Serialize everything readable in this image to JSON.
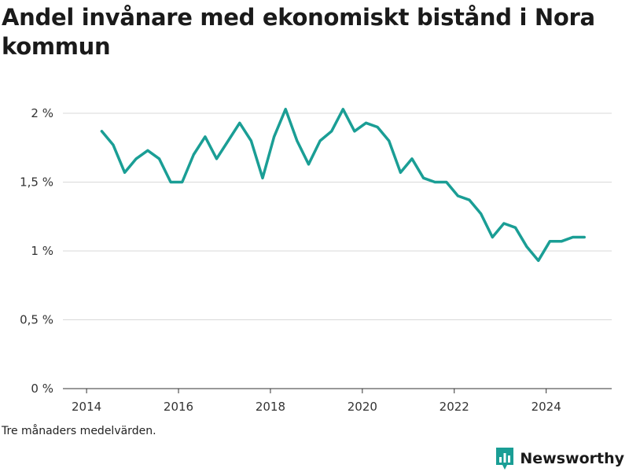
{
  "chart_data": {
    "type": "line",
    "title": "Andel invånare med ekonomiskt bistånd i Nora kommun",
    "note": "Tre månaders medelvärden.",
    "xlabel": "",
    "ylabel": "",
    "xlim": [
      2013.75,
      2025.4
    ],
    "ylim": [
      0,
      2
    ],
    "y_ticks": [
      0,
      0.5,
      1,
      1.5,
      2
    ],
    "y_tick_labels": [
      "0 %",
      "0,5 %",
      "1 %",
      "1,5 %",
      "2 %"
    ],
    "x_ticks": [
      2014,
      2016,
      2018,
      2020,
      2022,
      2024
    ],
    "x_tick_labels": [
      "2014",
      "2016",
      "2018",
      "2020",
      "2022",
      "2024"
    ],
    "grid": "horizontal",
    "line_color": "#1a9e95",
    "series": [
      {
        "x": [
          2014.33,
          2014.58,
          2014.83,
          2015.08,
          2015.33,
          2015.58,
          2015.83,
          2016.08,
          2016.33,
          2016.58,
          2016.83,
          2017.08,
          2017.33,
          2017.58,
          2017.83,
          2018.08,
          2018.33,
          2018.58,
          2018.83,
          2019.08,
          2019.33,
          2019.58,
          2019.83,
          2020.08,
          2020.33,
          2020.58,
          2020.83,
          2021.08,
          2021.33,
          2021.58,
          2021.83,
          2022.08,
          2022.33,
          2022.58,
          2022.83,
          2023.08,
          2023.33,
          2023.58,
          2023.83,
          2024.08,
          2024.33,
          2024.58,
          2024.83
        ],
        "values": [
          1.87,
          1.77,
          1.57,
          1.67,
          1.73,
          1.67,
          1.5,
          1.5,
          1.7,
          1.83,
          1.67,
          1.8,
          1.93,
          1.8,
          1.53,
          1.83,
          2.03,
          1.8,
          1.63,
          1.8,
          1.87,
          2.03,
          1.87,
          1.93,
          1.9,
          1.8,
          1.57,
          1.67,
          1.53,
          1.5,
          1.5,
          1.4,
          1.37,
          1.27,
          1.1,
          1.2,
          1.17,
          1.03,
          0.93,
          1.07,
          1.07,
          1.1,
          1.1
        ]
      }
    ]
  },
  "brand": {
    "name": "Newsworthy",
    "color": "#1a9e95",
    "icon": "newsworthy-logo-icon"
  }
}
